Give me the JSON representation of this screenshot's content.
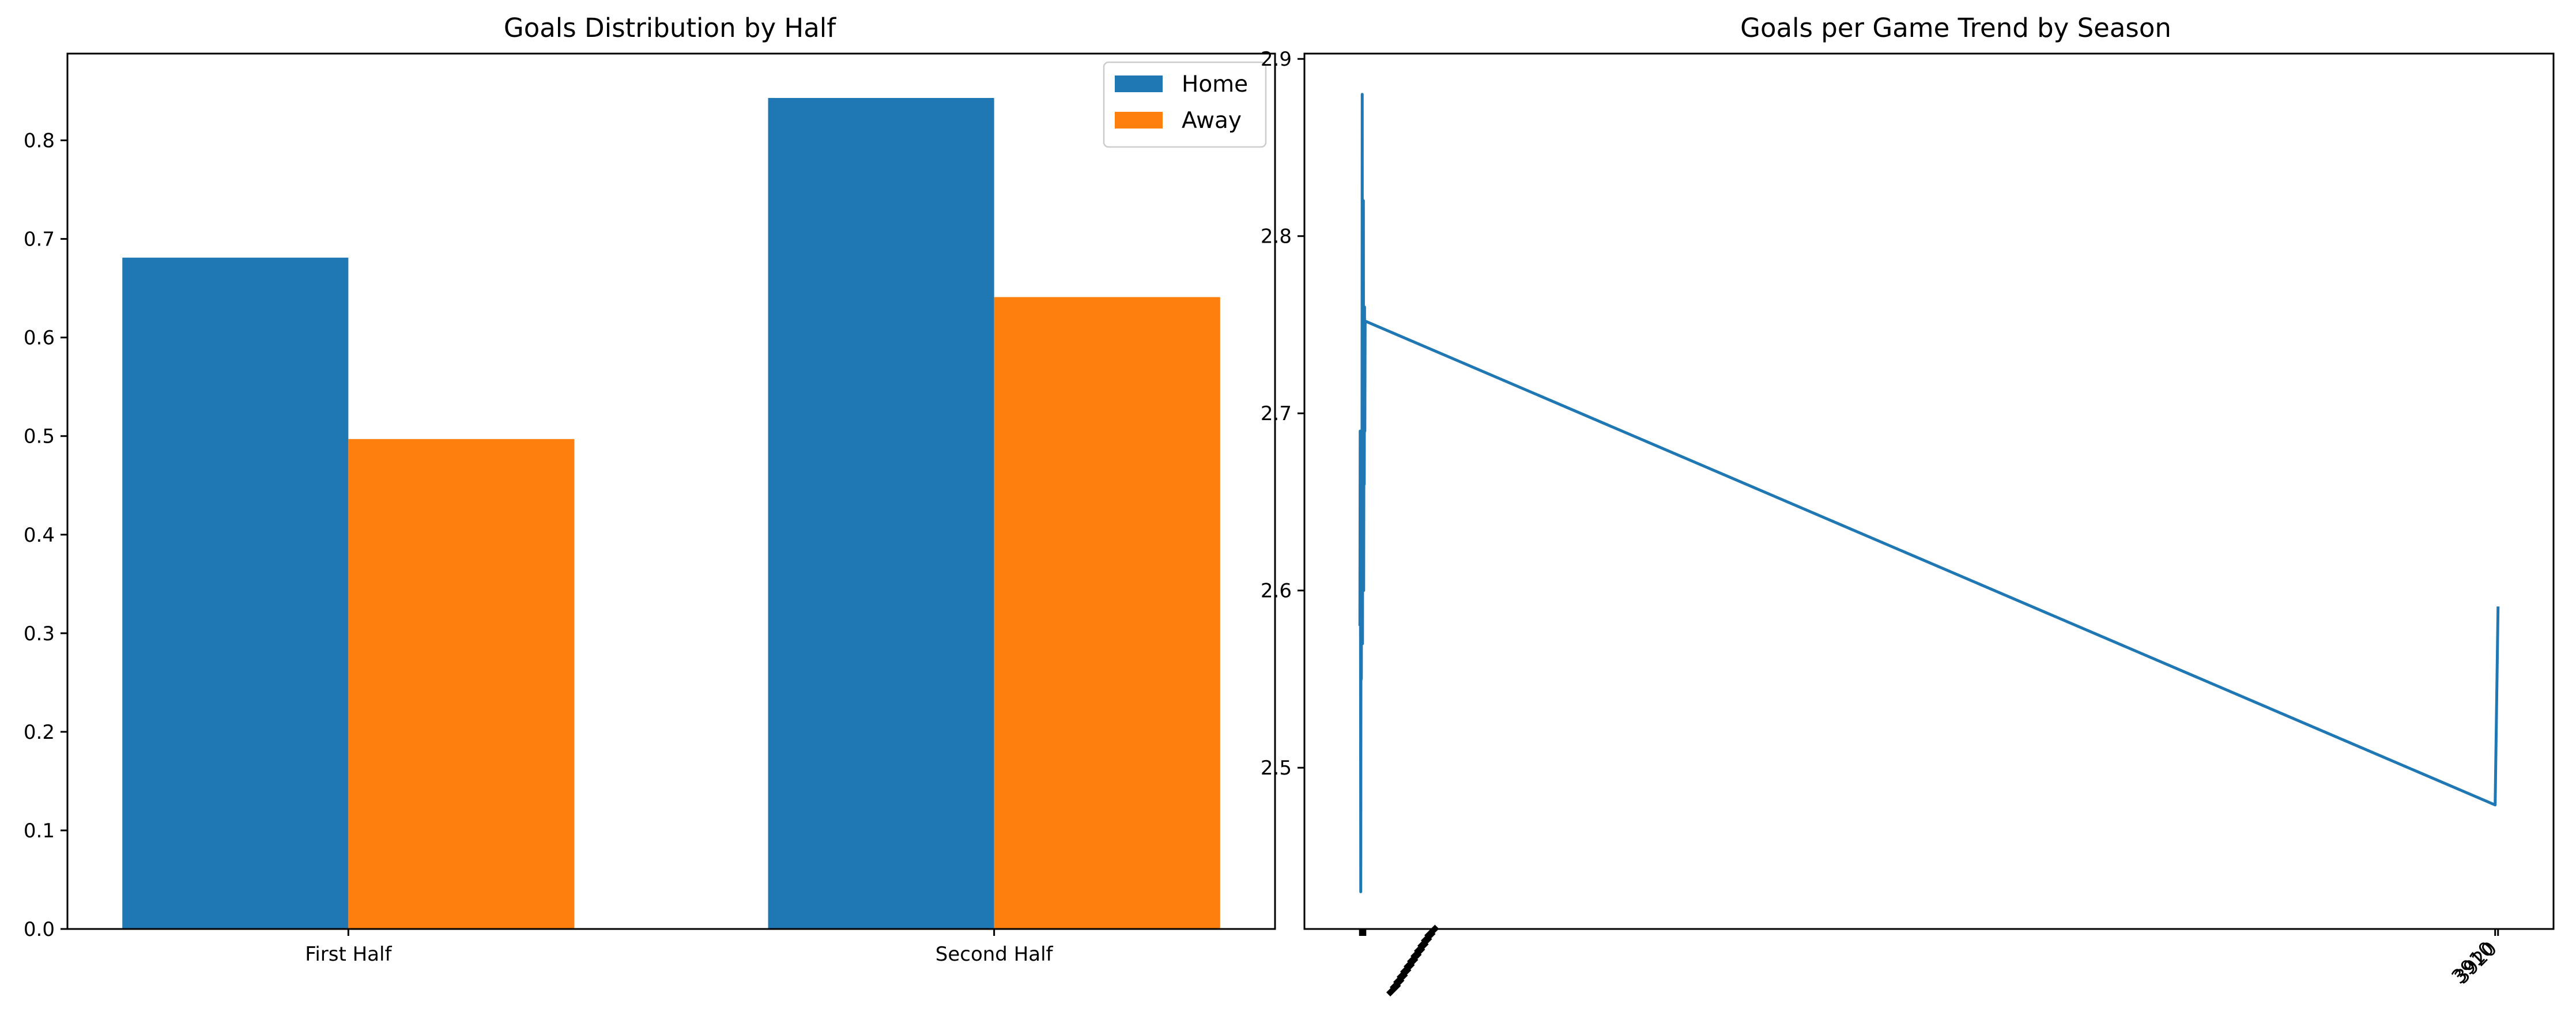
{
  "chart_data": [
    {
      "type": "bar",
      "title": "Goals Distribution by Half",
      "xlabel": "",
      "ylabel": "",
      "categories": [
        "First Half",
        "Second Half"
      ],
      "series": [
        {
          "name": "Home",
          "color": "#1f77b4",
          "values": [
            0.681,
            0.843
          ]
        },
        {
          "name": "Away",
          "color": "#ff7f0e",
          "values": [
            0.497,
            0.641
          ]
        }
      ],
      "ylim": [
        0,
        0.888
      ],
      "yticks": [
        0.0,
        0.1,
        0.2,
        0.3,
        0.4,
        0.5,
        0.6,
        0.7,
        0.8
      ],
      "ytick_labels": [
        "0.0",
        "0.1",
        "0.2",
        "0.3",
        "0.4",
        "0.5",
        "0.6",
        "0.7",
        "0.8"
      ],
      "grid": false,
      "legend": "top-right"
    },
    {
      "type": "line",
      "title": "Goals per Game Trend by Season",
      "xlabel": "",
      "ylabel": "",
      "series": [
        {
          "color": "#1f77b4",
          "x": [
            1,
            2,
            3,
            4,
            5,
            6,
            7,
            8,
            9,
            10,
            11,
            12,
            13,
            14,
            15,
            16,
            17,
            18,
            19,
            20,
            3910,
            3920
          ],
          "y": [
            2.58,
            2.69,
            2.6,
            2.43,
            2.68,
            2.55,
            2.64,
            2.59,
            2.88,
            2.57,
            2.7,
            2.62,
            2.82,
            2.6,
            2.71,
            2.66,
            2.76,
            2.69,
            2.75,
            2.752,
            2.479,
            2.591
          ]
        }
      ],
      "xlim": [
        -190,
        4111
      ],
      "ylim": [
        2.409,
        2.903
      ],
      "yticks": [
        2.5,
        2.6,
        2.7,
        2.8,
        2.9
      ],
      "ytick_labels": [
        "2.5",
        "2.6",
        "2.7",
        "2.8",
        "2.9"
      ],
      "xtick_labels": [
        "3910",
        "3920"
      ],
      "grid": false
    }
  ]
}
